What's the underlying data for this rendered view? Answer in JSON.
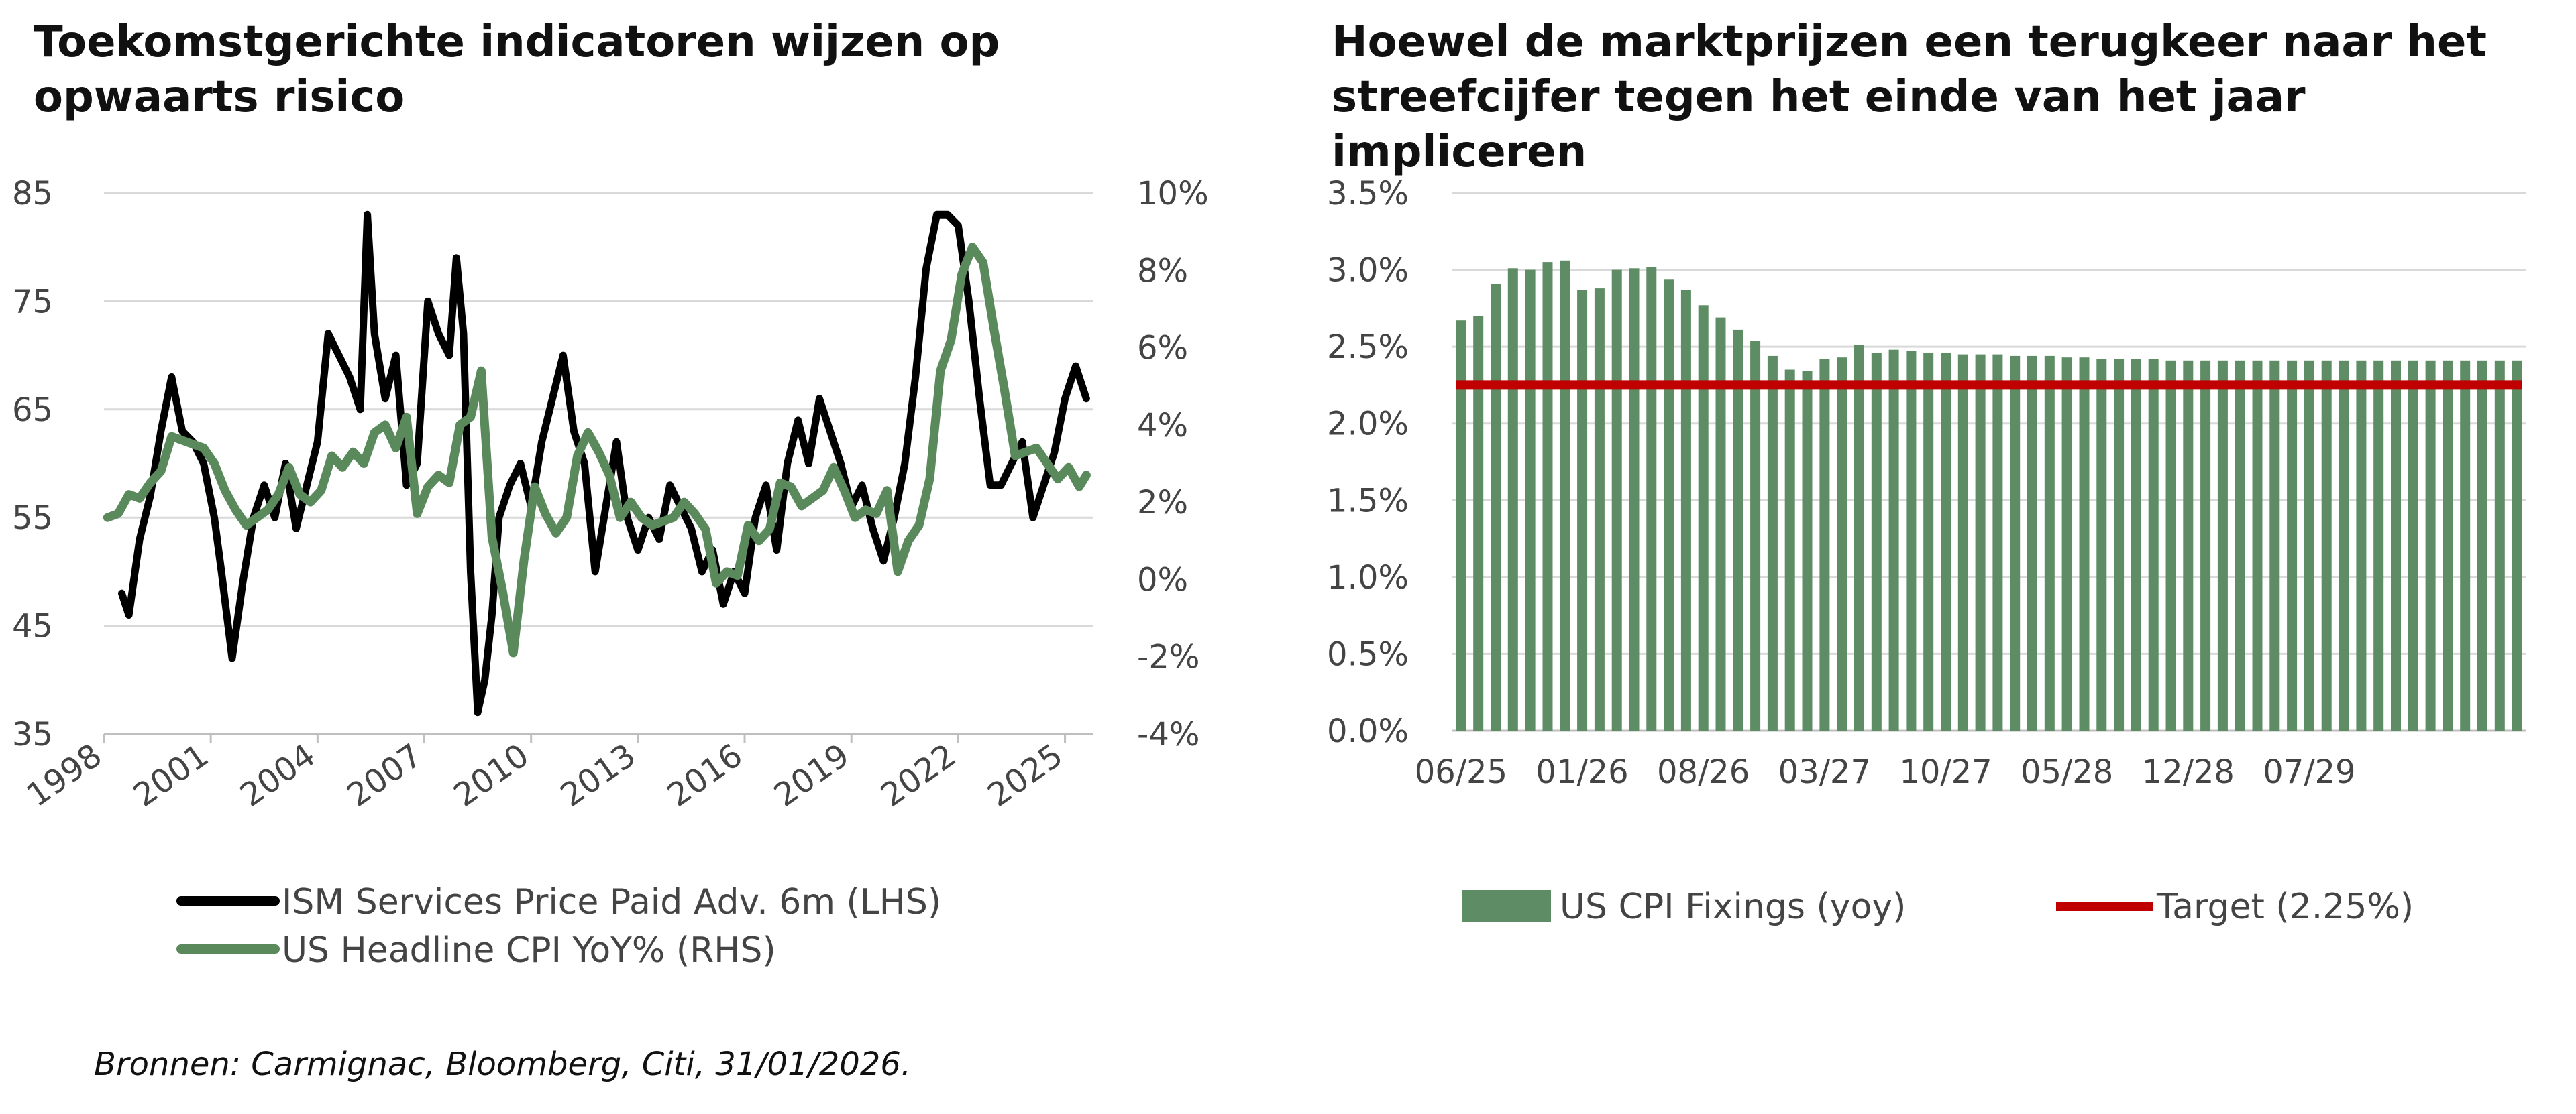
{
  "chart_data": [
    {
      "type": "line",
      "title": "Toekomstgerichte indicatoren wijzen op opwaarts risico",
      "x_ticks": [
        "1998",
        "2001",
        "2004",
        "2007",
        "2010",
        "2013",
        "2016",
        "2019",
        "2022",
        "2025"
      ],
      "x_range": [
        1998,
        2025.8
      ],
      "y_left_ticks": [
        "85",
        "75",
        "65",
        "55",
        "45",
        "35"
      ],
      "y_left_range": [
        35,
        85
      ],
      "y_right_ticks": [
        "10%",
        "8%",
        "6%",
        "4%",
        "2%",
        "0%",
        "-2%",
        "-4%"
      ],
      "y_right_range": [
        -4,
        10
      ],
      "grid": true,
      "legend_position": "bottom",
      "series": [
        {
          "name": "ISM Services Price Paid Adv. 6m (LHS)",
          "axis": "left",
          "color": "#000000",
          "x": [
            1998.5,
            1998.7,
            1999.0,
            1999.3,
            1999.6,
            1999.9,
            2000.2,
            2000.5,
            2000.8,
            2001.1,
            2001.3,
            2001.6,
            2001.9,
            2002.2,
            2002.5,
            2002.8,
            2003.1,
            2003.4,
            2003.7,
            2004.0,
            2004.3,
            2004.6,
            2004.9,
            2005.2,
            2005.4,
            2005.6,
            2005.9,
            2006.2,
            2006.5,
            2006.8,
            2007.1,
            2007.4,
            2007.7,
            2007.9,
            2008.1,
            2008.3,
            2008.5,
            2008.7,
            2008.9,
            2009.1,
            2009.4,
            2009.7,
            2010.0,
            2010.3,
            2010.6,
            2010.9,
            2011.2,
            2011.5,
            2011.8,
            2012.1,
            2012.4,
            2012.7,
            2013.0,
            2013.3,
            2013.6,
            2013.9,
            2014.2,
            2014.5,
            2014.8,
            2015.1,
            2015.4,
            2015.7,
            2016.0,
            2016.3,
            2016.6,
            2016.9,
            2017.2,
            2017.5,
            2017.8,
            2018.1,
            2018.4,
            2018.7,
            2019.0,
            2019.3,
            2019.6,
            2019.9,
            2020.2,
            2020.5,
            2020.8,
            2021.1,
            2021.4,
            2021.7,
            2022.0,
            2022.3,
            2022.6,
            2022.9,
            2023.2,
            2023.5,
            2023.8,
            2024.1,
            2024.4,
            2024.7,
            2025.0,
            2025.3,
            2025.6
          ],
          "values": [
            48,
            46,
            53,
            57,
            63,
            68,
            63,
            62,
            60,
            55,
            50,
            42,
            49,
            55,
            58,
            55,
            60,
            54,
            58,
            62,
            72,
            70,
            68,
            65,
            83,
            72,
            66,
            70,
            58,
            60,
            75,
            72,
            70,
            79,
            72,
            50,
            37,
            40,
            46,
            55,
            58,
            60,
            56,
            62,
            66,
            70,
            63,
            60,
            50,
            56,
            62,
            55,
            52,
            55,
            53,
            58,
            56,
            54,
            50,
            52,
            47,
            50,
            48,
            55,
            58,
            52,
            60,
            64,
            60,
            66,
            63,
            60,
            56,
            58,
            54,
            51,
            55,
            60,
            68,
            78,
            83,
            83,
            82,
            75,
            66,
            58,
            58,
            60,
            62,
            55,
            58,
            61,
            66,
            69,
            66
          ]
        },
        {
          "name": "US Headline CPI YoY% (RHS)",
          "axis": "right",
          "color": "#5a8a5c",
          "x": [
            1998.1,
            1998.4,
            1998.7,
            1999.0,
            1999.3,
            1999.6,
            1999.9,
            2000.2,
            2000.5,
            2000.8,
            2001.1,
            2001.4,
            2001.7,
            2002.0,
            2002.3,
            2002.6,
            2002.9,
            2003.2,
            2003.5,
            2003.8,
            2004.1,
            2004.4,
            2004.7,
            2005.0,
            2005.3,
            2005.6,
            2005.9,
            2006.2,
            2006.5,
            2006.8,
            2007.1,
            2007.4,
            2007.7,
            2008.0,
            2008.3,
            2008.6,
            2008.9,
            2009.2,
            2009.5,
            2009.8,
            2010.1,
            2010.4,
            2010.7,
            2011.0,
            2011.3,
            2011.6,
            2011.9,
            2012.2,
            2012.5,
            2012.8,
            2013.1,
            2013.4,
            2013.7,
            2014.0,
            2014.3,
            2014.6,
            2014.9,
            2015.2,
            2015.5,
            2015.8,
            2016.1,
            2016.4,
            2016.7,
            2017.0,
            2017.3,
            2017.6,
            2017.9,
            2018.2,
            2018.5,
            2018.8,
            2019.1,
            2019.4,
            2019.7,
            2020.0,
            2020.3,
            2020.6,
            2020.9,
            2021.2,
            2021.5,
            2021.8,
            2022.1,
            2022.4,
            2022.7,
            2023.0,
            2023.3,
            2023.6,
            2023.9,
            2024.2,
            2024.5,
            2024.8,
            2025.1,
            2025.4,
            2025.6
          ],
          "values": [
            1.6,
            1.7,
            2.2,
            2.1,
            2.5,
            2.8,
            3.7,
            3.6,
            3.5,
            3.4,
            3.0,
            2.3,
            1.8,
            1.4,
            1.6,
            1.8,
            2.2,
            2.9,
            2.2,
            2.0,
            2.3,
            3.2,
            2.9,
            3.3,
            3.0,
            3.8,
            4.0,
            3.4,
            4.2,
            1.7,
            2.4,
            2.7,
            2.5,
            4.0,
            4.2,
            5.4,
            1.1,
            -0.3,
            -1.9,
            0.5,
            2.4,
            1.7,
            1.2,
            1.6,
            3.2,
            3.8,
            3.3,
            2.7,
            1.6,
            2.0,
            1.6,
            1.4,
            1.5,
            1.6,
            2.0,
            1.7,
            1.3,
            -0.1,
            0.2,
            0.1,
            1.4,
            1.0,
            1.3,
            2.5,
            2.4,
            1.9,
            2.1,
            2.3,
            2.9,
            2.3,
            1.6,
            1.8,
            1.7,
            2.3,
            0.2,
            1.0,
            1.4,
            2.6,
            5.4,
            6.2,
            7.9,
            8.6,
            8.2,
            6.5,
            4.9,
            3.2,
            3.3,
            3.4,
            3.0,
            2.6,
            2.9,
            2.4,
            2.7
          ]
        }
      ]
    },
    {
      "type": "bar",
      "title": "Hoewel de marktprijzen een terugkeer naar het streefcijfer tegen het einde van het jaar impliceren",
      "x_ticks": [
        "06/25",
        "01/26",
        "08/26",
        "03/27",
        "10/27",
        "05/28",
        "12/28",
        "07/29"
      ],
      "y_ticks": [
        "3.5%",
        "3.0%",
        "2.5%",
        "2.0%",
        "1.5%",
        "1.0%",
        "0.5%",
        "0.0%"
      ],
      "ylim": [
        0,
        3.5
      ],
      "grid": true,
      "legend_position": "bottom",
      "series": [
        {
          "name": "US CPI Fixings (yoy)",
          "color": "#5e8c64",
          "values": [
            2.67,
            2.7,
            2.91,
            3.01,
            3.0,
            3.05,
            3.06,
            2.87,
            2.88,
            3.0,
            3.01,
            3.02,
            2.94,
            2.87,
            2.77,
            2.69,
            2.61,
            2.54,
            2.44,
            2.35,
            2.34,
            2.42,
            2.43,
            2.51,
            2.46,
            2.48,
            2.47,
            2.46,
            2.46,
            2.45,
            2.45,
            2.45,
            2.44,
            2.44,
            2.44,
            2.43,
            2.43,
            2.42,
            2.42,
            2.42,
            2.42,
            2.41,
            2.41,
            2.41,
            2.41,
            2.41,
            2.41,
            2.41,
            2.41,
            2.41,
            2.41,
            2.41,
            2.41,
            2.41,
            2.41,
            2.41,
            2.41,
            2.41,
            2.41,
            2.41,
            2.41,
            2.41
          ]
        },
        {
          "name": "Target (2.25%)",
          "type": "line",
          "color": "#c00000",
          "value": 2.25
        }
      ]
    }
  ],
  "source": "Bronnen: Carmignac, Bloomberg, Citi, 31/01/2026."
}
